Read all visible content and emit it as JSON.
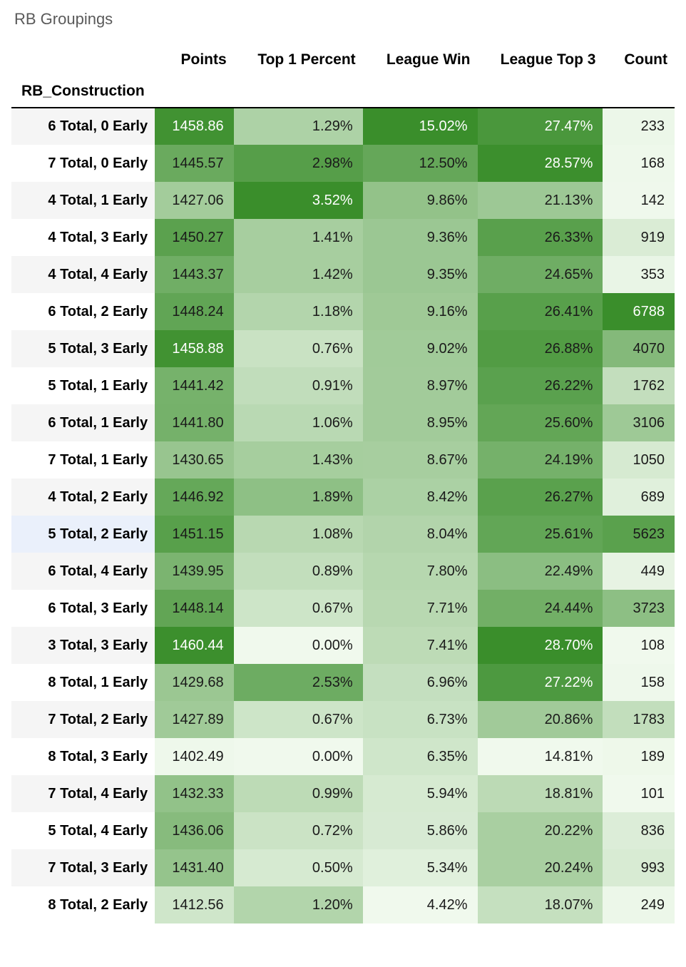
{
  "title": "RB Groupings",
  "index_label": "RB_Construction",
  "columns": [
    "Points",
    "Top 1 Percent",
    "League Win",
    "League Top 3",
    "Count"
  ],
  "column_keys": [
    "points",
    "top1",
    "lwin",
    "ltop3",
    "count"
  ],
  "heatmap": {
    "color_min": "#f0f9ed",
    "color_max": "#3a8e2b",
    "text_dark": "#1a1a1a",
    "text_light": "#ffffff",
    "light_text_threshold": 0.88,
    "ranges": {
      "points": {
        "min": 1402,
        "max": 1461
      },
      "top1": {
        "min": 0.0,
        "max": 3.52
      },
      "lwin": {
        "min": 4.42,
        "max": 15.02
      },
      "ltop3": {
        "min": 14.81,
        "max": 28.7
      },
      "count": {
        "min": 101,
        "max": 6788
      }
    }
  },
  "highlight_row_index": 11,
  "rows": [
    {
      "label": "6 Total, 0 Early",
      "points": 1458.86,
      "top1": 1.29,
      "lwin": 15.02,
      "ltop3": 27.47,
      "count": 233
    },
    {
      "label": "7 Total, 0 Early",
      "points": 1445.57,
      "top1": 2.98,
      "lwin": 12.5,
      "ltop3": 28.57,
      "count": 168
    },
    {
      "label": "4 Total, 1 Early",
      "points": 1427.06,
      "top1": 3.52,
      "lwin": 9.86,
      "ltop3": 21.13,
      "count": 142
    },
    {
      "label": "4 Total, 3 Early",
      "points": 1450.27,
      "top1": 1.41,
      "lwin": 9.36,
      "ltop3": 26.33,
      "count": 919
    },
    {
      "label": "4 Total, 4 Early",
      "points": 1443.37,
      "top1": 1.42,
      "lwin": 9.35,
      "ltop3": 24.65,
      "count": 353
    },
    {
      "label": "6 Total, 2 Early",
      "points": 1448.24,
      "top1": 1.18,
      "lwin": 9.16,
      "ltop3": 26.41,
      "count": 6788
    },
    {
      "label": "5 Total, 3 Early",
      "points": 1458.88,
      "top1": 0.76,
      "lwin": 9.02,
      "ltop3": 26.88,
      "count": 4070
    },
    {
      "label": "5 Total, 1 Early",
      "points": 1441.42,
      "top1": 0.91,
      "lwin": 8.97,
      "ltop3": 26.22,
      "count": 1762
    },
    {
      "label": "6 Total, 1 Early",
      "points": 1441.8,
      "top1": 1.06,
      "lwin": 8.95,
      "ltop3": 25.6,
      "count": 3106
    },
    {
      "label": "7 Total, 1 Early",
      "points": 1430.65,
      "top1": 1.43,
      "lwin": 8.67,
      "ltop3": 24.19,
      "count": 1050
    },
    {
      "label": "4 Total, 2 Early",
      "points": 1446.92,
      "top1": 1.89,
      "lwin": 8.42,
      "ltop3": 26.27,
      "count": 689
    },
    {
      "label": "5 Total, 2 Early",
      "points": 1451.15,
      "top1": 1.08,
      "lwin": 8.04,
      "ltop3": 25.61,
      "count": 5623
    },
    {
      "label": "6 Total, 4 Early",
      "points": 1439.95,
      "top1": 0.89,
      "lwin": 7.8,
      "ltop3": 22.49,
      "count": 449
    },
    {
      "label": "6 Total, 3 Early",
      "points": 1448.14,
      "top1": 0.67,
      "lwin": 7.71,
      "ltop3": 24.44,
      "count": 3723
    },
    {
      "label": "3 Total, 3 Early",
      "points": 1460.44,
      "top1": 0.0,
      "lwin": 7.41,
      "ltop3": 28.7,
      "count": 108
    },
    {
      "label": "8 Total, 1 Early",
      "points": 1429.68,
      "top1": 2.53,
      "lwin": 6.96,
      "ltop3": 27.22,
      "count": 158
    },
    {
      "label": "7 Total, 2 Early",
      "points": 1427.89,
      "top1": 0.67,
      "lwin": 6.73,
      "ltop3": 20.86,
      "count": 1783
    },
    {
      "label": "8 Total, 3 Early",
      "points": 1402.49,
      "top1": 0.0,
      "lwin": 6.35,
      "ltop3": 14.81,
      "count": 189
    },
    {
      "label": "7 Total, 4 Early",
      "points": 1432.33,
      "top1": 0.99,
      "lwin": 5.94,
      "ltop3": 18.81,
      "count": 101
    },
    {
      "label": "5 Total, 4 Early",
      "points": 1436.06,
      "top1": 0.72,
      "lwin": 5.86,
      "ltop3": 20.22,
      "count": 836
    },
    {
      "label": "7 Total, 3 Early",
      "points": 1431.4,
      "top1": 0.5,
      "lwin": 5.34,
      "ltop3": 20.24,
      "count": 993
    },
    {
      "label": "8 Total, 2 Early",
      "points": 1412.56,
      "top1": 1.2,
      "lwin": 4.42,
      "ltop3": 18.07,
      "count": 249
    }
  ]
}
